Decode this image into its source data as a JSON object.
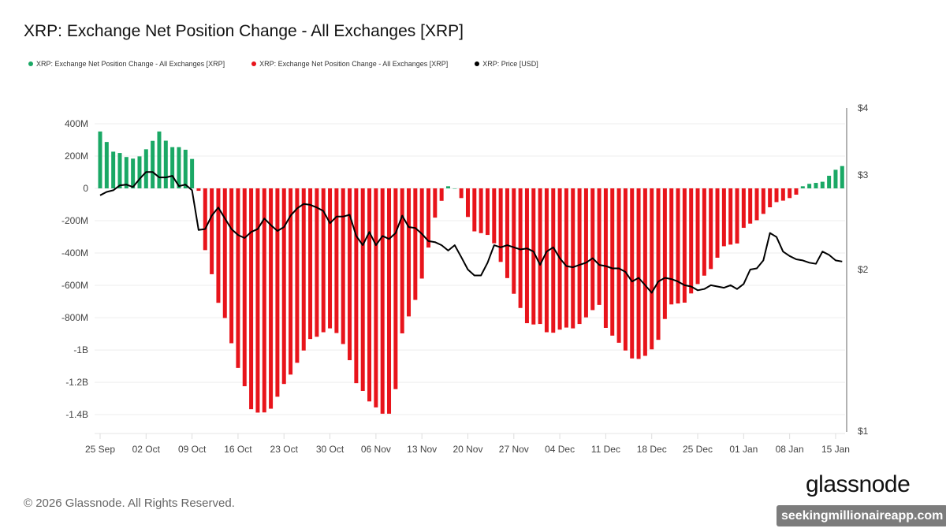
{
  "title": "XRP: Exchange Net Position Change - All Exchanges [XRP]",
  "legend": [
    {
      "label": "XRP: Exchange Net Position Change - All Exchanges [XRP]",
      "color": "#1aa865"
    },
    {
      "label": "XRP: Exchange Net Position Change - All Exchanges [XRP]",
      "color": "#e8141b"
    },
    {
      "label": "XRP: Price [USD]",
      "color": "#000000"
    }
  ],
  "footer": "© 2026 Glassnode. All Rights Reserved.",
  "logo": "glassnode",
  "watermark": "seekingmillionaireapp.com",
  "chart_data": {
    "type": "bar+line",
    "title": "XRP: Exchange Net Position Change - All Exchanges [XRP]",
    "grid": true,
    "legend_placement": "top-left",
    "x_tick_labels": [
      "25 Sep",
      "02 Oct",
      "09 Oct",
      "16 Oct",
      "23 Oct",
      "30 Oct",
      "06 Nov",
      "13 Nov",
      "20 Nov",
      "27 Nov",
      "04 Dec",
      "11 Dec",
      "18 Dec",
      "25 Dec",
      "01 Jan",
      "08 Jan",
      "15 Jan"
    ],
    "y_left": {
      "ticks": [
        400,
        200,
        0,
        -200,
        -400,
        -600,
        -800,
        -1000,
        -1200,
        -1400
      ],
      "tick_labels": [
        "400M",
        "200M",
        "0",
        "-200M",
        "-400M",
        "-600M",
        "-800M",
        "-1B",
        "-1.2B",
        "-1.4B"
      ],
      "unit": "M XRP",
      "range": [
        -1500,
        400
      ]
    },
    "y_right": {
      "ticks": [
        4,
        3,
        2,
        1
      ],
      "tick_labels": [
        "$4",
        "$3",
        "$2",
        "$1"
      ],
      "scale": "log",
      "range": [
        1,
        4
      ]
    },
    "x": [
      "2025-09-25",
      "2025-09-26",
      "2025-09-27",
      "2025-09-28",
      "2025-09-29",
      "2025-09-30",
      "2025-10-01",
      "2025-10-02",
      "2025-10-03",
      "2025-10-04",
      "2025-10-05",
      "2025-10-06",
      "2025-10-07",
      "2025-10-08",
      "2025-10-09",
      "2025-10-10",
      "2025-10-11",
      "2025-10-12",
      "2025-10-13",
      "2025-10-14",
      "2025-10-15",
      "2025-10-16",
      "2025-10-17",
      "2025-10-18",
      "2025-10-19",
      "2025-10-20",
      "2025-10-21",
      "2025-10-22",
      "2025-10-23",
      "2025-10-24",
      "2025-10-25",
      "2025-10-26",
      "2025-10-27",
      "2025-10-28",
      "2025-10-29",
      "2025-10-30",
      "2025-10-31",
      "2025-11-01",
      "2025-11-02",
      "2025-11-03",
      "2025-11-04",
      "2025-11-05",
      "2025-11-06",
      "2025-11-07",
      "2025-11-08",
      "2025-11-09",
      "2025-11-10",
      "2025-11-11",
      "2025-11-12",
      "2025-11-13",
      "2025-11-14",
      "2025-11-15",
      "2025-11-16",
      "2025-11-17",
      "2025-11-18",
      "2025-11-19",
      "2025-11-20",
      "2025-11-21",
      "2025-11-22",
      "2025-11-23",
      "2025-11-24",
      "2025-11-25",
      "2025-11-26",
      "2025-11-27",
      "2025-11-28",
      "2025-11-29",
      "2025-11-30",
      "2025-12-01",
      "2025-12-02",
      "2025-12-03",
      "2025-12-04",
      "2025-12-05",
      "2025-12-06",
      "2025-12-07",
      "2025-12-08",
      "2025-12-09",
      "2025-12-10",
      "2025-12-11",
      "2025-12-12",
      "2025-12-13",
      "2025-12-14",
      "2025-12-15",
      "2025-12-16",
      "2025-12-17",
      "2025-12-18",
      "2025-12-19",
      "2025-12-20",
      "2025-12-21",
      "2025-12-22",
      "2025-12-23",
      "2025-12-24",
      "2025-12-25",
      "2025-12-26",
      "2025-12-27",
      "2025-12-28",
      "2025-12-29",
      "2025-12-30",
      "2025-12-31",
      "2026-01-01",
      "2026-01-02",
      "2026-01-03",
      "2026-01-04",
      "2026-01-05",
      "2026-01-06",
      "2026-01-07",
      "2026-01-08",
      "2026-01-09",
      "2026-01-10",
      "2026-01-11",
      "2026-01-12",
      "2026-01-13",
      "2026-01-14",
      "2026-01-15",
      "2026-01-16"
    ],
    "series": [
      {
        "name": "XRP: Exchange Net Position Change - All Exchanges [XRP]",
        "type": "bar",
        "unit": "M XRP",
        "positive_color": "#1aa865",
        "negative_color": "#e8141b",
        "values": [
          352,
          287,
          227,
          219,
          194,
          184,
          198,
          242,
          294,
          352,
          295,
          255,
          255,
          239,
          182,
          -15,
          -382,
          -531,
          -708,
          -802,
          -958,
          -1111,
          -1224,
          -1366,
          -1387,
          -1386,
          -1363,
          -1289,
          -1210,
          -1152,
          -1079,
          -1003,
          -932,
          -918,
          -890,
          -866,
          -895,
          -963,
          -1063,
          -1205,
          -1253,
          -1318,
          -1355,
          -1394,
          -1394,
          -1242,
          -897,
          -792,
          -690,
          -558,
          -366,
          -181,
          -77,
          13,
          0,
          -60,
          -177,
          -266,
          -277,
          -288,
          -340,
          -455,
          -555,
          -652,
          -740,
          -834,
          -842,
          -839,
          -890,
          -893,
          -874,
          -861,
          -866,
          -839,
          -798,
          -753,
          -721,
          -863,
          -911,
          -955,
          -1003,
          -1052,
          -1055,
          -1036,
          -996,
          -937,
          -808,
          -718,
          -712,
          -707,
          -650,
          -592,
          -540,
          -499,
          -429,
          -358,
          -348,
          -341,
          -244,
          -218,
          -197,
          -158,
          -117,
          -85,
          -76,
          -60,
          -39,
          13,
          28,
          34,
          41,
          78,
          115,
          138
        ]
      },
      {
        "name": "XRP: Price [USD]",
        "type": "line",
        "axis": "right",
        "color": "#000000",
        "values": [
          2.75,
          2.79,
          2.81,
          2.87,
          2.88,
          2.85,
          2.95,
          3.04,
          3.04,
          2.97,
          2.97,
          2.99,
          2.86,
          2.88,
          2.81,
          2.37,
          2.38,
          2.52,
          2.61,
          2.49,
          2.38,
          2.32,
          2.29,
          2.35,
          2.38,
          2.49,
          2.42,
          2.36,
          2.4,
          2.52,
          2.6,
          2.65,
          2.64,
          2.61,
          2.57,
          2.44,
          2.51,
          2.51,
          2.53,
          2.31,
          2.22,
          2.35,
          2.22,
          2.31,
          2.28,
          2.34,
          2.52,
          2.4,
          2.39,
          2.33,
          2.26,
          2.25,
          2.22,
          2.17,
          2.22,
          2.11,
          2.0,
          1.95,
          1.95,
          2.06,
          2.22,
          2.2,
          2.22,
          2.2,
          2.18,
          2.19,
          2.16,
          2.04,
          2.16,
          2.2,
          2.1,
          2.03,
          2.02,
          2.04,
          2.06,
          2.1,
          2.04,
          2.03,
          2.01,
          2.01,
          1.98,
          1.9,
          1.93,
          1.87,
          1.81,
          1.9,
          1.93,
          1.92,
          1.9,
          1.87,
          1.86,
          1.83,
          1.84,
          1.87,
          1.86,
          1.85,
          1.87,
          1.84,
          1.88,
          2.0,
          2.01,
          2.08,
          2.34,
          2.3,
          2.16,
          2.12,
          2.09,
          2.08,
          2.06,
          2.05,
          2.16,
          2.13,
          2.08,
          2.07
        ]
      }
    ]
  }
}
